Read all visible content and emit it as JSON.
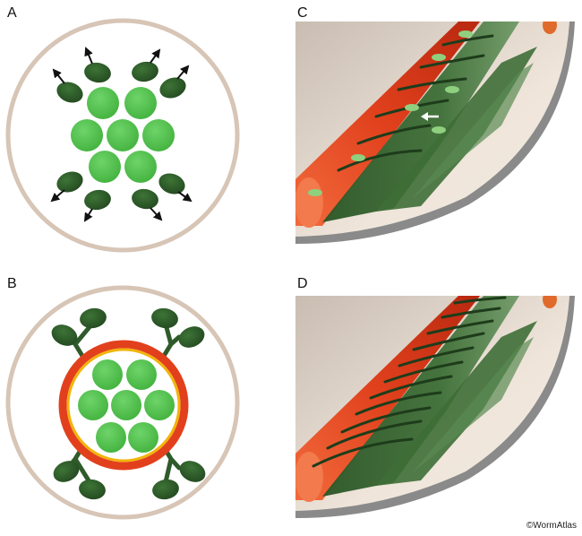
{
  "panels": {
    "a": {
      "label": "A"
    },
    "b": {
      "label": "B"
    },
    "c": {
      "label": "C"
    },
    "d": {
      "label": "D"
    }
  },
  "credit": "©WormAtlas",
  "colors": {
    "cuticle_ring": "#d7c5b6",
    "muscle_light_green": "#54c04e",
    "muscle_dark_green": "#2f5a2a",
    "basement_red": "#e2401d",
    "basement_yellow": "#f2b40b",
    "hypodermis_beige": "#efe3d6",
    "cuticle_grey": "#8a8a8a"
  }
}
